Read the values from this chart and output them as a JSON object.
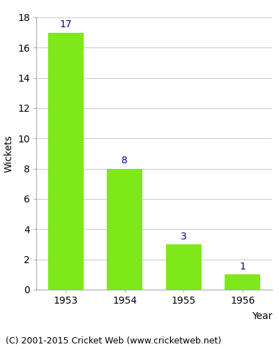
{
  "years": [
    "1953",
    "1954",
    "1955",
    "1956"
  ],
  "values": [
    17,
    8,
    3,
    1
  ],
  "bar_color": "#7FE81A",
  "label_color": "#00008B",
  "ylabel": "Wickets",
  "xlabel": "Year",
  "ylim": [
    0,
    18
  ],
  "yticks": [
    0,
    2,
    4,
    6,
    8,
    10,
    12,
    14,
    16,
    18
  ],
  "footer": "(C) 2001-2015 Cricket Web (www.cricketweb.net)",
  "background_color": "#ffffff",
  "grid_color": "#cccccc",
  "label_fontsize": 10,
  "axis_label_fontsize": 10,
  "tick_fontsize": 10,
  "footer_fontsize": 9
}
